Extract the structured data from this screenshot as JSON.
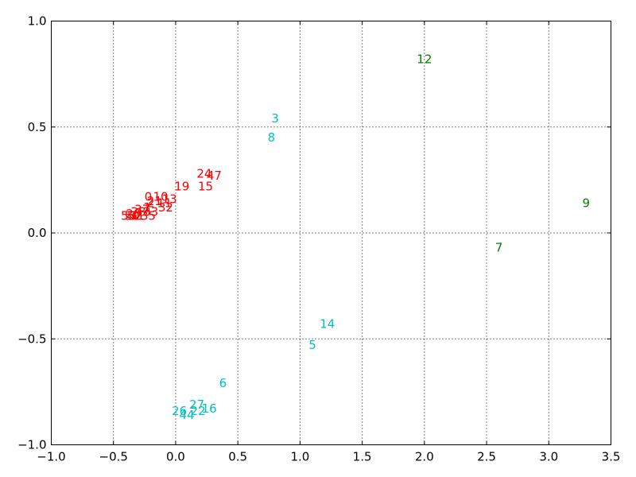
{
  "chart_data": {
    "type": "scatter",
    "title": "",
    "xlabel": "",
    "ylabel": "",
    "xlim": [
      -1.0,
      3.5
    ],
    "ylim": [
      -1.0,
      1.0
    ],
    "grid": true,
    "x_ticks": [
      "−1.0",
      "−0.5",
      "0.0",
      "0.5",
      "1.0",
      "1.5",
      "2.0",
      "2.5",
      "3.0",
      "3.5"
    ],
    "x_tick_values": [
      -1.0,
      -0.5,
      0.0,
      0.5,
      1.0,
      1.5,
      2.0,
      2.5,
      3.0,
      3.5
    ],
    "y_ticks": [
      "−1.0",
      "−0.5",
      "0.0",
      "0.5",
      "1.0"
    ],
    "y_tick_values": [
      -1.0,
      -0.5,
      0.0,
      0.5,
      1.0
    ],
    "series": [
      {
        "color": "#ff0000",
        "points": [
          {
            "label": "24",
            "x": 0.23,
            "y": 0.28
          },
          {
            "label": "47",
            "x": 0.31,
            "y": 0.27
          },
          {
            "label": "19",
            "x": 0.05,
            "y": 0.22
          },
          {
            "label": "15",
            "x": 0.24,
            "y": 0.22
          },
          {
            "label": "0",
            "x": -0.22,
            "y": 0.17
          },
          {
            "label": "10",
            "x": -0.12,
            "y": 0.17
          },
          {
            "label": "13",
            "x": -0.05,
            "y": 0.16
          },
          {
            "label": "21",
            "x": -0.17,
            "y": 0.15
          },
          {
            "label": "2",
            "x": -0.2,
            "y": 0.14
          },
          {
            "label": "11",
            "x": -0.09,
            "y": 0.14
          },
          {
            "label": "32",
            "x": -0.08,
            "y": 0.12
          },
          {
            "label": "1",
            "x": -0.23,
            "y": 0.12
          },
          {
            "label": "37",
            "x": -0.27,
            "y": 0.11
          },
          {
            "label": "28",
            "x": -0.3,
            "y": 0.1
          },
          {
            "label": "33",
            "x": -0.2,
            "y": 0.1
          },
          {
            "label": "20",
            "x": -0.34,
            "y": 0.09
          },
          {
            "label": "35",
            "x": -0.22,
            "y": 0.08
          },
          {
            "label": "53",
            "x": -0.38,
            "y": 0.08
          },
          {
            "label": "50",
            "x": -0.35,
            "y": 0.08
          },
          {
            "label": "52",
            "x": -0.33,
            "y": 0.08
          },
          {
            "label": "31",
            "x": -0.31,
            "y": 0.08
          }
        ]
      },
      {
        "color": "#00bfbf",
        "points": [
          {
            "label": "3",
            "x": 0.8,
            "y": 0.54
          },
          {
            "label": "8",
            "x": 0.77,
            "y": 0.45
          },
          {
            "label": "14",
            "x": 1.22,
            "y": -0.43
          },
          {
            "label": "5",
            "x": 1.1,
            "y": -0.53
          },
          {
            "label": "6",
            "x": 0.38,
            "y": -0.71
          },
          {
            "label": "27",
            "x": 0.17,
            "y": -0.81
          },
          {
            "label": "16",
            "x": 0.27,
            "y": -0.83
          },
          {
            "label": "22",
            "x": 0.18,
            "y": -0.84
          },
          {
            "label": "26",
            "x": 0.03,
            "y": -0.84
          },
          {
            "label": "44",
            "x": 0.09,
            "y": -0.86
          }
        ]
      },
      {
        "color": "#008000",
        "points": [
          {
            "label": "12",
            "x": 2.0,
            "y": 0.82
          },
          {
            "label": "9",
            "x": 3.3,
            "y": 0.14
          },
          {
            "label": "7",
            "x": 2.6,
            "y": -0.07
          }
        ]
      }
    ]
  }
}
